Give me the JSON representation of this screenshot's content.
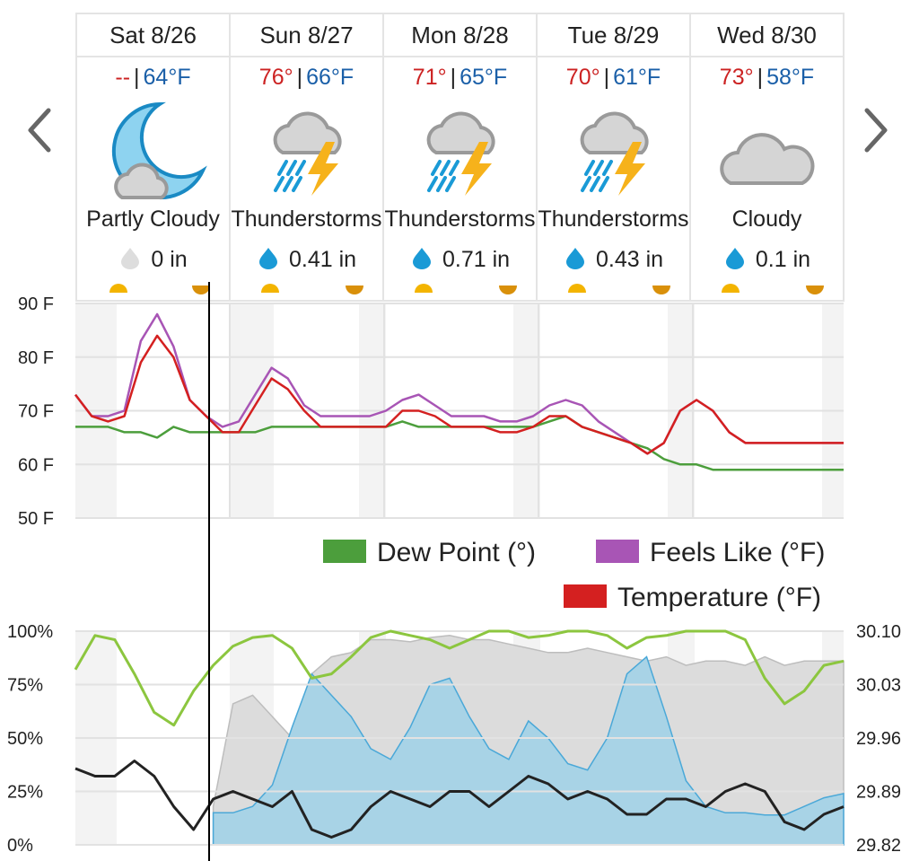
{
  "forecast": {
    "days": [
      {
        "name": "Sat 8/26",
        "hi": "--",
        "lo": "64°F",
        "condition": "Partly Cloudy",
        "precip": "0 in",
        "icon": "moon-partly-cloudy-icon"
      },
      {
        "name": "Sun 8/27",
        "hi": "76°",
        "lo": "66°F",
        "condition": "Thunderstorms",
        "precip": "0.41 in",
        "icon": "thunderstorm-icon"
      },
      {
        "name": "Mon 8/28",
        "hi": "71°",
        "lo": "65°F",
        "condition": "Thunderstorms",
        "precip": "0.71 in",
        "icon": "thunderstorm-icon"
      },
      {
        "name": "Tue 8/29",
        "hi": "70°",
        "lo": "61°F",
        "condition": "Thunderstorms",
        "precip": "0.43 in",
        "icon": "thunderstorm-icon"
      },
      {
        "name": "Wed 8/30",
        "hi": "73°",
        "lo": "58°F",
        "condition": "Cloudy",
        "precip": "0.1 in",
        "icon": "cloud-icon"
      }
    ],
    "separator": "|"
  },
  "colors": {
    "temperature": "#d42020",
    "feels_like": "#a855b5",
    "dew_point": "#4c9e3c",
    "humidity": "#8cc63f",
    "pressure": "#222222",
    "precip_chance": "#4aa8d8",
    "cloud_cover": "#bdbdbd",
    "hi": "#cc2222",
    "lo": "#1a5fa8"
  },
  "chart_data": [
    {
      "type": "line",
      "ylim": [
        50,
        90
      ],
      "y_ticks": [
        "90 F",
        "80 F",
        "70 F",
        "60 F",
        "50 F"
      ],
      "x_hours": [
        0,
        3,
        6,
        9,
        12,
        15,
        18,
        21,
        24,
        27,
        30,
        33,
        36,
        39,
        42,
        45,
        48,
        51,
        54,
        57,
        60,
        63,
        66,
        69,
        72,
        75,
        78,
        81,
        84,
        87,
        90,
        93,
        96,
        99,
        102,
        105,
        108,
        111,
        114,
        117,
        120,
        123,
        126,
        129,
        132,
        135,
        138,
        141
      ],
      "series": [
        {
          "name": "Temperature (°F)",
          "values": [
            73,
            69,
            68,
            69,
            79,
            84,
            80,
            72,
            69,
            66,
            66,
            71,
            76,
            74,
            70,
            67,
            67,
            67,
            67,
            67,
            70,
            70,
            69,
            67,
            67,
            67,
            66,
            66,
            67,
            69,
            69,
            67,
            66,
            65,
            64,
            62,
            64,
            70,
            72,
            70,
            66,
            64,
            64,
            64,
            64,
            64,
            64,
            64
          ]
        },
        {
          "name": "Feels Like (°F)",
          "values": [
            73,
            69,
            69,
            70,
            83,
            88,
            82,
            72,
            69,
            67,
            68,
            73,
            78,
            76,
            71,
            69,
            69,
            69,
            69,
            70,
            72,
            73,
            71,
            69,
            69,
            69,
            68,
            68,
            69,
            71,
            72,
            71,
            68,
            66,
            64,
            62,
            64,
            70,
            72,
            70,
            66,
            64,
            64,
            64,
            64,
            64,
            64,
            64
          ]
        },
        {
          "name": "Dew Point (°)",
          "values": [
            67,
            67,
            67,
            66,
            66,
            65,
            67,
            66,
            66,
            66,
            66,
            66,
            67,
            67,
            67,
            67,
            67,
            67,
            67,
            67,
            68,
            67,
            67,
            67,
            67,
            67,
            67,
            67,
            67,
            68,
            69,
            67,
            66,
            65,
            64,
            63,
            61,
            60,
            60,
            59,
            59,
            59,
            59,
            59,
            59,
            59,
            59,
            59
          ]
        }
      ]
    },
    {
      "type": "area",
      "ylim_left": [
        0,
        100
      ],
      "y_ticks_left": [
        "100%",
        "75%",
        "50%",
        "25%",
        "0%"
      ],
      "y_ticks_right": [
        "30.10",
        "30.03",
        "29.96",
        "29.89",
        "29.82"
      ],
      "series": [
        {
          "name": "Relative Humidity (%)",
          "values": [
            82,
            98,
            96,
            80,
            62,
            56,
            72,
            84,
            93,
            97,
            98,
            92,
            78,
            80,
            88,
            97,
            100,
            98,
            96,
            92,
            96,
            100,
            100,
            97,
            98,
            100,
            100,
            98,
            92,
            97,
            98,
            100,
            100,
            100,
            96,
            78,
            66,
            72,
            84,
            86
          ]
        },
        {
          "name": "Cloud Cover (%)",
          "values": [
            null,
            null,
            null,
            null,
            null,
            null,
            null,
            18,
            66,
            70,
            60,
            50,
            80,
            88,
            90,
            96,
            96,
            95,
            97,
            98,
            96,
            96,
            94,
            92,
            90,
            90,
            92,
            90,
            88,
            86,
            88,
            84,
            86,
            86,
            84,
            88,
            84,
            86,
            86,
            86
          ]
        },
        {
          "name": "Chance of Precip (%)",
          "values": [
            null,
            null,
            null,
            null,
            null,
            null,
            null,
            15,
            15,
            18,
            28,
            55,
            80,
            70,
            60,
            45,
            40,
            55,
            75,
            78,
            60,
            45,
            40,
            58,
            50,
            38,
            35,
            50,
            80,
            88,
            60,
            30,
            18,
            15,
            15,
            14,
            14,
            18,
            22,
            24
          ]
        },
        {
          "name": "Pressure (inHg)",
          "values": [
            29.92,
            29.91,
            29.91,
            29.93,
            29.91,
            29.87,
            29.84,
            29.88,
            29.89,
            29.88,
            29.87,
            29.89,
            29.84,
            29.83,
            29.84,
            29.87,
            29.89,
            29.88,
            29.87,
            29.89,
            29.89,
            29.87,
            29.89,
            29.91,
            29.9,
            29.88,
            29.89,
            29.88,
            29.86,
            29.86,
            29.88,
            29.88,
            29.87,
            29.89,
            29.9,
            29.89,
            29.85,
            29.84,
            29.86,
            29.87
          ]
        }
      ]
    }
  ],
  "legend": {
    "dew_point": "Dew Point (°)",
    "feels_like": "Feels Like (°F)",
    "temperature": "Temperature (°F)"
  }
}
